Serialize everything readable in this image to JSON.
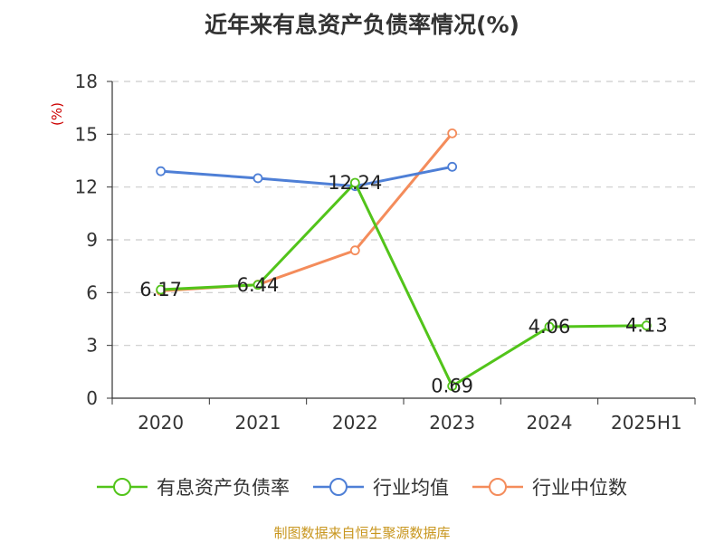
{
  "title": "近年来有息资产负债率情况(%)",
  "source": "制图数据来自恒生聚源数据库",
  "colors": {
    "series1": "#52c41a",
    "series2": "#4e7fd6",
    "series3": "#f48c5b",
    "ylabel": "#cc0000",
    "grid": "#cccccc",
    "axis": "#333333"
  },
  "chart_data": {
    "type": "line",
    "ylabel": "(%)",
    "ylim": [
      0,
      18
    ],
    "yticks": [
      0,
      3,
      6,
      9,
      12,
      15,
      18
    ],
    "grid": true,
    "legend_position": "bottom",
    "categories": [
      "2020",
      "2021",
      "2022",
      "2023",
      "2024",
      "2025H1"
    ],
    "series": [
      {
        "name": "有息资产负债率",
        "values": [
          6.17,
          6.44,
          12.24,
          0.69,
          4.06,
          4.13
        ],
        "labels": [
          "6.17",
          "6.44",
          "12.24",
          "0.69",
          "4.06",
          "4.13"
        ]
      },
      {
        "name": "行业均值",
        "values": [
          12.9,
          12.5,
          12.05,
          13.15,
          null,
          null
        ]
      },
      {
        "name": "行业中位数",
        "values": [
          6.1,
          6.45,
          8.4,
          15.05,
          null,
          null
        ]
      }
    ]
  }
}
